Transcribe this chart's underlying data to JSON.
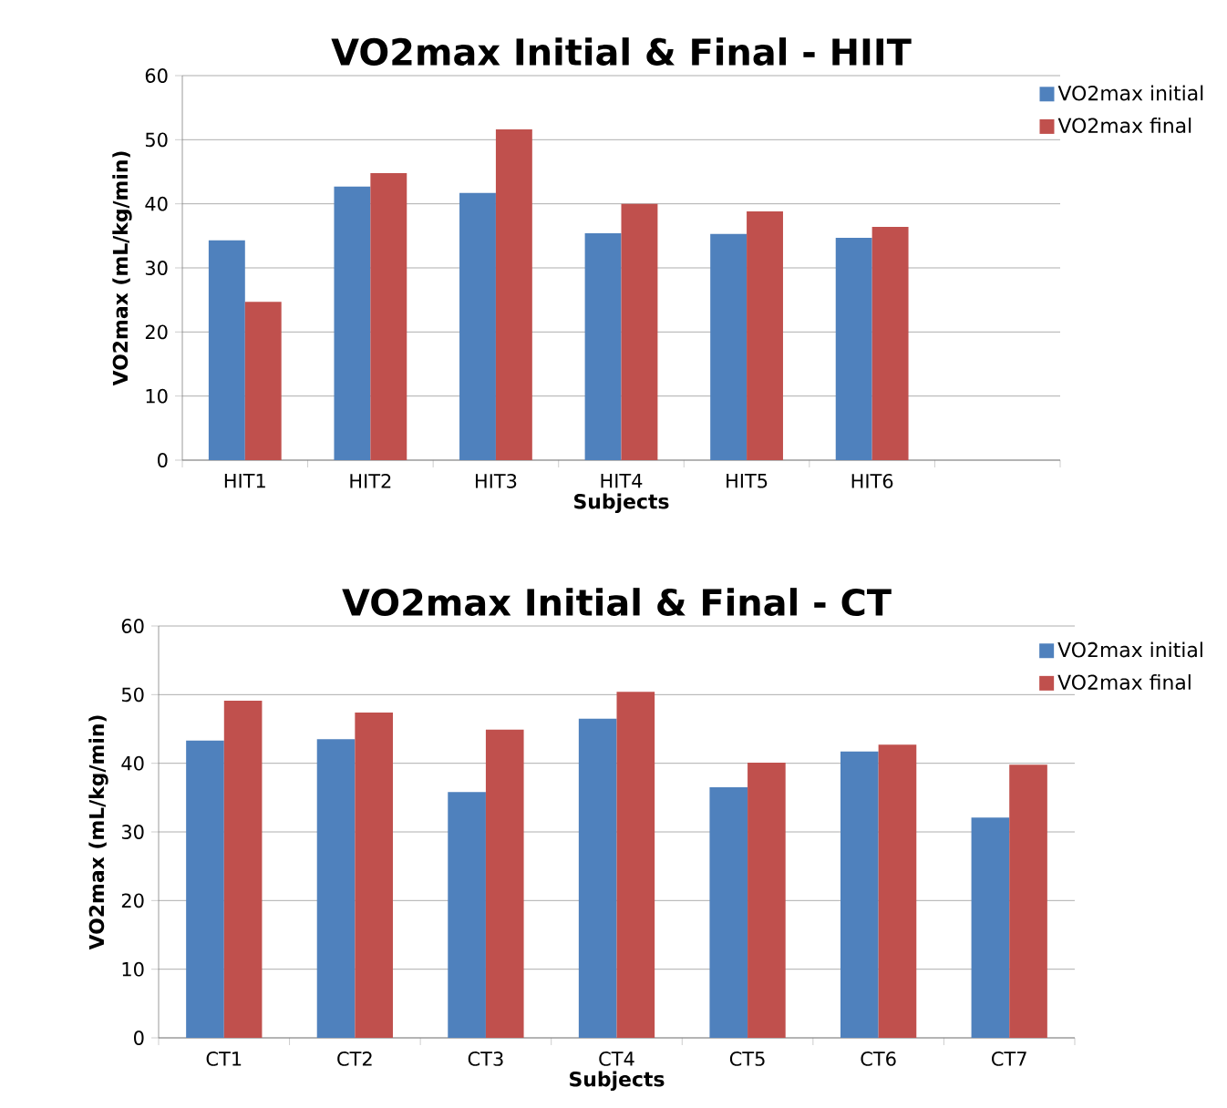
{
  "chart_data": [
    {
      "type": "bar",
      "title": "VO2max Initial & Final - HIIT",
      "xlabel": "Subjects",
      "ylabel": "VO2max (mL/kg/min)",
      "categories": [
        "HIT1",
        "HIT2",
        "HIT3",
        "HIT4",
        "HIT5",
        "HIT6",
        null
      ],
      "series": [
        {
          "name": "VO2max initial",
          "color": "#4f81bd",
          "values": [
            34.3,
            42.7,
            41.7,
            35.4,
            35.3,
            34.7,
            null
          ]
        },
        {
          "name": "VO2max final",
          "color": "#c0504d",
          "values": [
            24.7,
            44.8,
            51.6,
            40.0,
            38.8,
            36.4,
            null
          ]
        }
      ],
      "ylim": [
        0,
        60
      ],
      "yticks": [
        0,
        10,
        20,
        30,
        40,
        50,
        60
      ],
      "grid": "y",
      "legend": "top right"
    },
    {
      "type": "bar",
      "title": "VO2max Initial & Final - CT",
      "xlabel": "Subjects",
      "ylabel": "VO2max (mL/kg/min)",
      "categories": [
        "CT1",
        "CT2",
        "CT3",
        "CT4",
        "CT5",
        "CT6",
        "CT7"
      ],
      "series": [
        {
          "name": "VO2max initial",
          "color": "#4f81bd",
          "values": [
            43.3,
            43.5,
            35.8,
            46.5,
            36.5,
            41.7,
            32.1
          ]
        },
        {
          "name": "VO2max final",
          "color": "#c0504d",
          "values": [
            49.1,
            47.4,
            44.9,
            50.4,
            40.1,
            42.7,
            39.8
          ]
        }
      ],
      "ylim": [
        0,
        60
      ],
      "yticks": [
        0,
        10,
        20,
        30,
        40,
        50,
        60
      ],
      "grid": "y",
      "legend": "top right"
    }
  ]
}
